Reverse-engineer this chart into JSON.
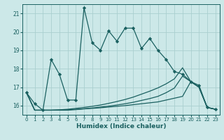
{
  "xlabel": "Humidex (Indice chaleur)",
  "bg_color": "#cce8e8",
  "grid_color": "#aacfcf",
  "line_color": "#1a6060",
  "xlim": [
    -0.5,
    23.5
  ],
  "ylim": [
    15.5,
    21.5
  ],
  "yticks": [
    16,
    17,
    18,
    19,
    20,
    21
  ],
  "xticks": [
    0,
    1,
    2,
    3,
    4,
    5,
    6,
    7,
    8,
    9,
    10,
    11,
    12,
    13,
    14,
    15,
    16,
    17,
    18,
    19,
    20,
    21,
    22,
    23
  ],
  "series": [
    {
      "x": [
        0,
        1,
        2,
        3,
        4,
        5,
        6,
        7,
        8,
        9,
        10,
        11,
        12,
        13,
        14,
        15,
        16,
        17,
        18,
        19,
        20,
        21,
        22,
        23
      ],
      "y": [
        16.7,
        16.1,
        15.75,
        18.5,
        17.7,
        16.3,
        16.3,
        21.3,
        19.4,
        19.0,
        20.05,
        19.5,
        20.2,
        20.2,
        19.1,
        19.65,
        19.0,
        18.5,
        17.85,
        17.7,
        17.3,
        17.1,
        15.9,
        15.8
      ],
      "marker": "D",
      "markersize": 2.2,
      "linewidth": 0.9
    },
    {
      "x": [
        0,
        1,
        2,
        3,
        4,
        5,
        6,
        7,
        8,
        9,
        10,
        11,
        12,
        13,
        14,
        15,
        16,
        17,
        18,
        19,
        20,
        21,
        22,
        23
      ],
      "y": [
        16.7,
        15.75,
        15.75,
        15.75,
        15.75,
        15.75,
        15.78,
        15.82,
        15.85,
        15.88,
        15.92,
        15.96,
        16.0,
        16.05,
        16.1,
        16.15,
        16.2,
        16.3,
        16.4,
        16.5,
        17.3,
        17.0,
        15.9,
        15.8
      ],
      "marker": null,
      "linewidth": 0.9
    },
    {
      "x": [
        0,
        1,
        2,
        3,
        4,
        5,
        6,
        7,
        8,
        9,
        10,
        11,
        12,
        13,
        14,
        15,
        16,
        17,
        18,
        19,
        20,
        21,
        22,
        23
      ],
      "y": [
        16.7,
        15.75,
        15.75,
        15.75,
        15.76,
        15.77,
        15.8,
        15.83,
        15.87,
        15.92,
        15.97,
        16.03,
        16.1,
        16.18,
        16.28,
        16.38,
        16.5,
        16.7,
        16.95,
        17.6,
        17.3,
        17.0,
        15.9,
        15.8
      ],
      "marker": null,
      "linewidth": 0.9
    },
    {
      "x": [
        0,
        1,
        2,
        3,
        4,
        5,
        6,
        7,
        8,
        9,
        10,
        11,
        12,
        13,
        14,
        15,
        16,
        17,
        18,
        19,
        20,
        21,
        22,
        23
      ],
      "y": [
        16.7,
        15.75,
        15.75,
        15.75,
        15.77,
        15.8,
        15.85,
        15.9,
        15.96,
        16.03,
        16.12,
        16.22,
        16.33,
        16.46,
        16.62,
        16.78,
        16.96,
        17.18,
        17.45,
        18.05,
        17.3,
        17.0,
        15.9,
        15.8
      ],
      "marker": null,
      "linewidth": 0.9
    }
  ]
}
